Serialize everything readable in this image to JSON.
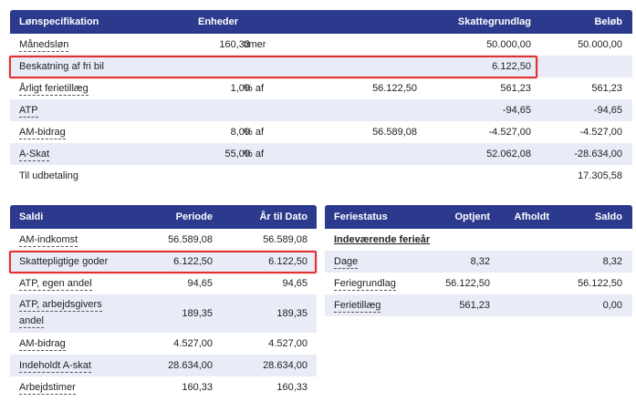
{
  "lon": {
    "headers": {
      "name": "Lønspecifikation",
      "enheder": "Enheder",
      "grundlag": "Skattegrundlag",
      "belob": "Beløb"
    },
    "rows": [
      {
        "name": "Månedsløn",
        "amount": "160,33",
        "unit": "timer",
        "base": "",
        "grundlag": "50.000,00",
        "belob": "50.000,00"
      },
      {
        "name": "Beskatning af fri bil",
        "amount": "",
        "unit": "",
        "base": "",
        "grundlag": "6.122,50",
        "belob": ""
      },
      {
        "name": "Årligt ferietillæg",
        "amount": "1,00",
        "unit": "% af",
        "base": "56.122,50",
        "grundlag": "561,23",
        "belob": "561,23"
      },
      {
        "name": "ATP",
        "amount": "",
        "unit": "",
        "base": "",
        "grundlag": "-94,65",
        "belob": "-94,65"
      },
      {
        "name": "AM-bidrag",
        "amount": "8,00",
        "unit": "% af",
        "base": "56.589,08",
        "grundlag": "-4.527,00",
        "belob": "-4.527,00"
      },
      {
        "name": "A-Skat",
        "amount": "55,00",
        "unit": "% af",
        "base": "",
        "grundlag": "52.062,08",
        "belob": "-28.634,00"
      },
      {
        "name": "Til udbetaling",
        "amount": "",
        "unit": "",
        "base": "",
        "grundlag": "",
        "belob": "17.305,58"
      }
    ]
  },
  "saldi": {
    "headers": {
      "name": "Saldi",
      "periode": "Periode",
      "aar": "År til Dato"
    },
    "rows": [
      {
        "name": "AM-indkomst",
        "periode": "56.589,08",
        "aar": "56.589,08"
      },
      {
        "name": "Skattepligtige goder",
        "periode": "6.122,50",
        "aar": "6.122,50"
      },
      {
        "name": "ATP, egen andel",
        "periode": "94,65",
        "aar": "94,65"
      },
      {
        "name1": "ATP, arbejdsgivers",
        "name2": "andel",
        "periode": "189,35",
        "aar": "189,35"
      },
      {
        "name": "AM-bidrag",
        "periode": "4.527,00",
        "aar": "4.527,00"
      },
      {
        "name": "Indeholdt A-skat",
        "periode": "28.634,00",
        "aar": "28.634,00"
      },
      {
        "name": "Arbejdstimer",
        "periode": "160,33",
        "aar": "160,33"
      }
    ]
  },
  "ferie": {
    "headers": {
      "name": "Feriestatus",
      "optjent": "Optjent",
      "afholdt": "Afholdt",
      "saldo": "Saldo"
    },
    "section": "Indeværende ferieår",
    "rows": [
      {
        "name": "Dage",
        "optjent": "8,32",
        "afholdt": "",
        "saldo": "8,32"
      },
      {
        "name": "Feriegrundlag",
        "optjent": "56.122,50",
        "afholdt": "",
        "saldo": "56.122,50"
      },
      {
        "name": "Ferietillæg",
        "optjent": "561,23",
        "afholdt": "",
        "saldo": "0,00"
      }
    ]
  },
  "colors": {
    "header_bg": "#2b3a8c",
    "row_alt": "#e9ebf7",
    "highlight": "#e03030"
  }
}
